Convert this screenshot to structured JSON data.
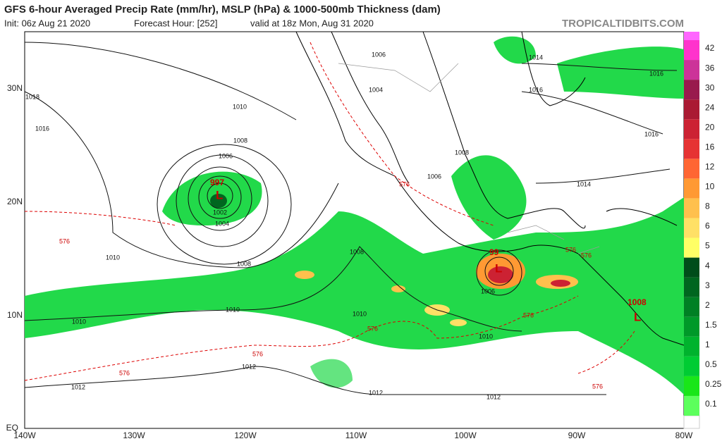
{
  "header": {
    "title": "GFS 6-hour Averaged Precip Rate (mm/hr), MSLP (hPa) & 1000-500mb Thickness (dam)",
    "init": "Init: 06z Aug 21 2020",
    "forecast_hour": "Forecast Hour: [252]",
    "valid": "valid at 18z Mon, Aug 31 2020",
    "site": "TROPICALTIDBITS.COM"
  },
  "axes": {
    "lat": [
      "30N",
      "20N",
      "10N",
      "EQ"
    ],
    "lon": [
      "140W",
      "130W",
      "120W",
      "110W",
      "100W",
      "90W",
      "80W"
    ]
  },
  "isobar_labels": [
    "1018",
    "1016",
    "1010",
    "1008",
    "1006",
    "1002",
    "1004",
    "1010",
    "1008",
    "1010",
    "1010",
    "1012",
    "1012",
    "1012",
    "1012",
    "1010",
    "1010",
    "1008",
    "1006",
    "1004",
    "1008",
    "1006",
    "1014",
    "1016",
    "1016",
    "1016",
    "1014",
    "1006"
  ],
  "pressure_centers": [
    "997",
    "99",
    "1008"
  ],
  "low_labels": [
    "L",
    "L",
    "L"
  ],
  "thickness_labels": [
    "576",
    "576",
    "576",
    "576",
    "576",
    "576",
    "576",
    "576",
    "576"
  ],
  "legend": [
    {
      "label": "0.1",
      "color": "#5cff5c"
    },
    {
      "label": "0.25",
      "color": "#19e619"
    },
    {
      "label": "0.5",
      "color": "#00cc33"
    },
    {
      "label": "1",
      "color": "#00b32d"
    },
    {
      "label": "1.5",
      "color": "#009929"
    },
    {
      "label": "2",
      "color": "#008024"
    },
    {
      "label": "3",
      "color": "#00661f"
    },
    {
      "label": "4",
      "color": "#004d1a"
    },
    {
      "label": "5",
      "color": "#ffff66"
    },
    {
      "label": "6",
      "color": "#ffe066"
    },
    {
      "label": "8",
      "color": "#ffc04d"
    },
    {
      "label": "10",
      "color": "#ff9933"
    },
    {
      "label": "12",
      "color": "#ff6633"
    },
    {
      "label": "16",
      "color": "#e63333"
    },
    {
      "label": "20",
      "color": "#cc2233"
    },
    {
      "label": "24",
      "color": "#aa1a33"
    },
    {
      "label": "30",
      "color": "#991a4d"
    },
    {
      "label": "36",
      "color": "#cc3399"
    },
    {
      "label": "42",
      "color": "#ff33cc"
    }
  ]
}
